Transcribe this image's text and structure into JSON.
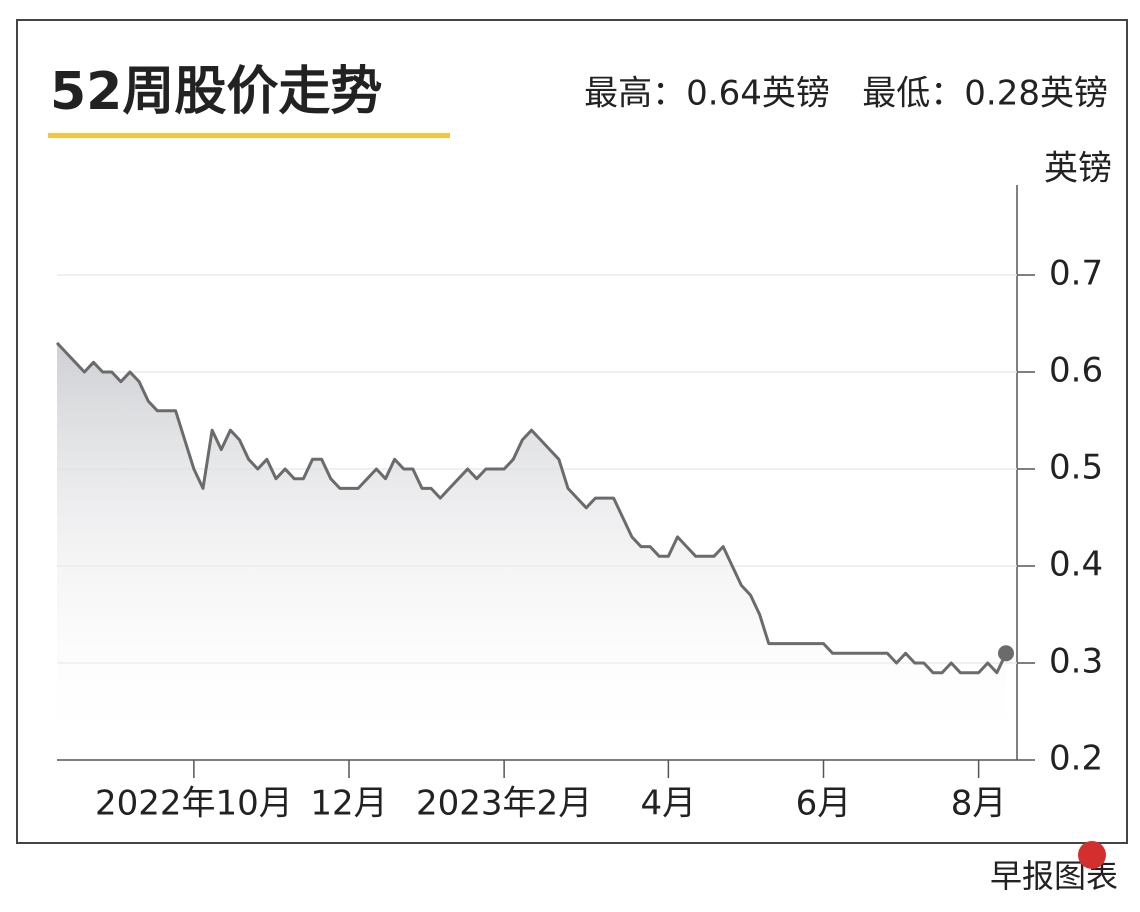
{
  "chart_data": {
    "type": "line",
    "title": "52周股价走势",
    "subtitle": "最高：0.64英镑   最低：0.28英镑",
    "y_axis_label": "英镑",
    "source": "早报图表",
    "categories": [
      null,
      null,
      null,
      null,
      null,
      null,
      null,
      null,
      null,
      null,
      null,
      null,
      null,
      null,
      null,
      "2022年10月",
      null,
      null,
      null,
      null,
      null,
      null,
      null,
      null,
      null,
      null,
      null,
      null,
      null,
      null,
      null,
      null,
      "12月",
      null,
      null,
      null,
      null,
      null,
      null,
      null,
      null,
      null,
      null,
      null,
      null,
      null,
      null,
      null,
      null,
      "2023年2月",
      null,
      null,
      null,
      null,
      null,
      null,
      null,
      null,
      null,
      null,
      null,
      null,
      null,
      null,
      null,
      null,
      null,
      "4月",
      null,
      null,
      null,
      null,
      null,
      null,
      null,
      null,
      null,
      null,
      null,
      null,
      null,
      null,
      null,
      null,
      "6月",
      null,
      null,
      null,
      null,
      null,
      null,
      null,
      null,
      null,
      null,
      null,
      null,
      null,
      null,
      null,
      null,
      "8月",
      null,
      null,
      null
    ],
    "values": [
      0.63,
      0.62,
      0.61,
      0.6,
      0.61,
      0.6,
      0.6,
      0.59,
      0.6,
      0.59,
      0.57,
      0.56,
      0.56,
      0.56,
      0.53,
      0.5,
      0.48,
      0.54,
      0.52,
      0.54,
      0.53,
      0.51,
      0.5,
      0.51,
      0.49,
      0.5,
      0.49,
      0.49,
      0.51,
      0.51,
      0.49,
      0.48,
      0.48,
      0.48,
      0.49,
      0.5,
      0.49,
      0.51,
      0.5,
      0.5,
      0.48,
      0.48,
      0.47,
      0.48,
      0.49,
      0.5,
      0.49,
      0.5,
      0.5,
      0.5,
      0.51,
      0.53,
      0.54,
      0.53,
      0.52,
      0.51,
      0.48,
      0.47,
      0.46,
      0.47,
      0.47,
      0.47,
      0.45,
      0.43,
      0.42,
      0.42,
      0.41,
      0.41,
      0.43,
      0.42,
      0.41,
      0.41,
      0.41,
      0.42,
      0.4,
      0.38,
      0.37,
      0.35,
      0.32,
      0.32,
      0.32,
      0.32,
      0.32,
      0.32,
      0.32,
      0.31,
      0.31,
      0.31,
      0.31,
      0.31,
      0.31,
      0.31,
      0.3,
      0.31,
      0.3,
      0.3,
      0.29,
      0.29,
      0.3,
      0.29,
      0.29,
      0.29,
      0.3,
      0.29,
      0.31
    ],
    "color": "#6b6b6b",
    "ylim": [
      0.2,
      0.8
    ],
    "yticks": [
      0.2,
      0.3,
      0.4,
      0.5,
      0.6,
      0.7
    ],
    "grid": true
  }
}
